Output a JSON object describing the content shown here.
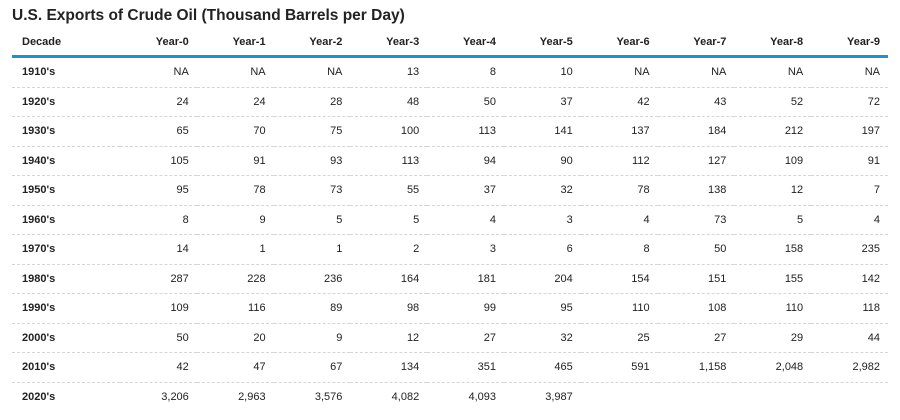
{
  "title": "U.S. Exports of Crude Oil (Thousand Barrels per Day)",
  "table": {
    "header": [
      "Decade",
      "Year-0",
      "Year-1",
      "Year-2",
      "Year-3",
      "Year-4",
      "Year-5",
      "Year-6",
      "Year-7",
      "Year-8",
      "Year-9"
    ],
    "rows": [
      [
        "1910's",
        "NA",
        "NA",
        "NA",
        "13",
        "8",
        "10",
        "NA",
        "NA",
        "NA",
        "NA"
      ],
      [
        "1920's",
        "24",
        "24",
        "28",
        "48",
        "50",
        "37",
        "42",
        "43",
        "52",
        "72"
      ],
      [
        "1930's",
        "65",
        "70",
        "75",
        "100",
        "113",
        "141",
        "137",
        "184",
        "212",
        "197"
      ],
      [
        "1940's",
        "105",
        "91",
        "93",
        "113",
        "94",
        "90",
        "112",
        "127",
        "109",
        "91"
      ],
      [
        "1950's",
        "95",
        "78",
        "73",
        "55",
        "37",
        "32",
        "78",
        "138",
        "12",
        "7"
      ],
      [
        "1960's",
        "8",
        "9",
        "5",
        "5",
        "4",
        "3",
        "4",
        "73",
        "5",
        "4"
      ],
      [
        "1970's",
        "14",
        "1",
        "1",
        "2",
        "3",
        "6",
        "8",
        "50",
        "158",
        "235"
      ],
      [
        "1980's",
        "287",
        "228",
        "236",
        "164",
        "181",
        "204",
        "154",
        "151",
        "155",
        "142"
      ],
      [
        "1990's",
        "109",
        "116",
        "89",
        "98",
        "99",
        "95",
        "110",
        "108",
        "110",
        "118"
      ],
      [
        "2000's",
        "50",
        "20",
        "9",
        "12",
        "27",
        "32",
        "25",
        "27",
        "29",
        "44"
      ],
      [
        "2010's",
        "42",
        "47",
        "67",
        "134",
        "351",
        "465",
        "591",
        "1,158",
        "2,048",
        "2,982"
      ],
      [
        "2020's",
        "3,206",
        "2,963",
        "3,576",
        "4,082",
        "4,093",
        "3,987"
      ]
    ]
  }
}
